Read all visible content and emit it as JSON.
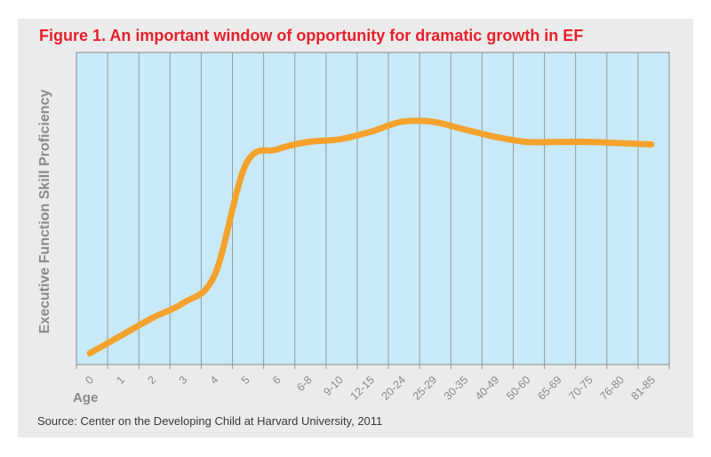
{
  "chart_data": {
    "type": "line",
    "title": "Figure 1. An important window of opportunity for dramatic growth in EF",
    "xlabel": "Age",
    "ylabel": "Executive Function Skill Proficiency",
    "categories": [
      "0",
      "1",
      "2",
      "3",
      "4",
      "5",
      "6",
      "6-8",
      "9-10",
      "12-15",
      "20-24",
      "25-29",
      "30-35",
      "40-49",
      "50-60",
      "65-69",
      "70-75",
      "76-80",
      "81-85"
    ],
    "values": [
      2,
      9,
      16,
      22,
      33,
      77,
      83,
      86,
      87,
      90,
      94,
      94,
      91,
      88,
      86,
      86,
      86,
      85.5,
      85
    ],
    "ylim": [
      0,
      100
    ],
    "grid": "vertical",
    "colors": {
      "line": "#f5a22d",
      "plot_bg": "#c8e9f8",
      "grid": "#9a9a9a",
      "title": "#e8202a"
    }
  },
  "source": "Source: Center on the Developing Child at Harvard University, 2011"
}
